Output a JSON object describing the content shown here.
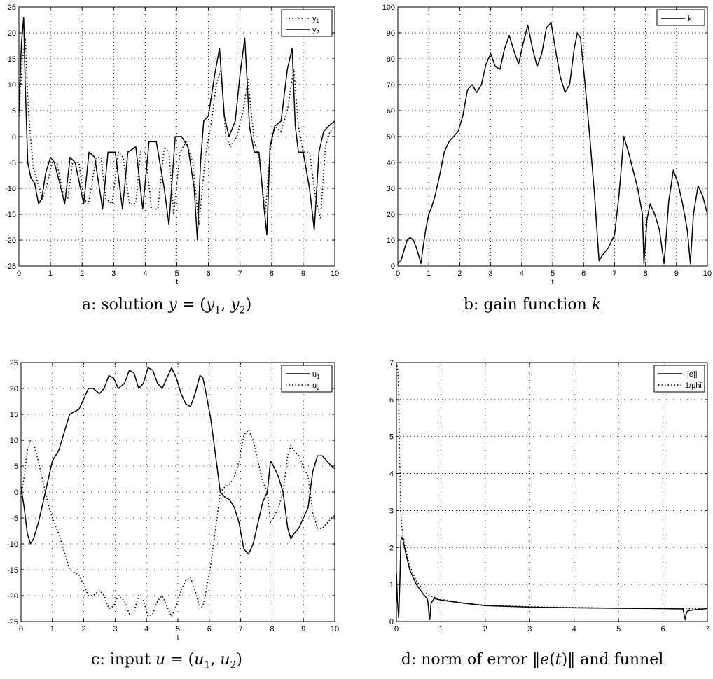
{
  "captions": {
    "a_prefix": "a: solution",
    "a_math": "y = (y1, y2)",
    "b_prefix": "b: gain function",
    "b_math": "k",
    "c_prefix": "c: input",
    "c_math": "u = (u1, u2)",
    "d_prefix": "d: norm of error",
    "d_math": "‖e(t)‖",
    "d_suffix": "and funnel"
  },
  "chart_data": [
    {
      "id": "a",
      "type": "line",
      "xlabel": "t",
      "xlim": [
        0,
        10
      ],
      "ylim": [
        -25,
        25
      ],
      "xticks": [
        0,
        1,
        2,
        3,
        4,
        5,
        6,
        7,
        8,
        9,
        10
      ],
      "yticks": [
        -25,
        -20,
        -15,
        -10,
        -5,
        0,
        5,
        10,
        15,
        20,
        25
      ],
      "grid": true,
      "legend": "top-right",
      "series": [
        {
          "name": "y1",
          "style": "dotted",
          "x": [
            0,
            0.1,
            0.2,
            0.3,
            0.45,
            0.6,
            0.75,
            0.9,
            1.05,
            1.2,
            1.4,
            1.55,
            1.7,
            1.9,
            2.05,
            2.2,
            2.45,
            2.6,
            2.75,
            2.95,
            3.15,
            3.3,
            3.5,
            3.7,
            3.85,
            4.0,
            4.2,
            4.4,
            4.6,
            4.75,
            4.9,
            5.1,
            5.3,
            5.5,
            5.7,
            5.9,
            6.1,
            6.25,
            6.4,
            6.55,
            6.7,
            6.9,
            7.1,
            7.25,
            7.45,
            7.6,
            7.8,
            7.95,
            8.1,
            8.3,
            8.5,
            8.7,
            8.85,
            9.0,
            9.2,
            9.4,
            9.55,
            9.7,
            9.85,
            10
          ],
          "y": [
            4,
            14,
            19,
            5,
            -6,
            -9,
            -12,
            -9,
            -5,
            -5,
            -11,
            -12,
            -5,
            -5,
            -12,
            -13,
            -4,
            -4,
            -12,
            -13,
            -3,
            -4,
            -13,
            -13,
            -3,
            -3,
            -14,
            -14,
            -2,
            -3,
            -15,
            -3,
            -1,
            -5,
            -17,
            -4,
            3,
            10,
            13,
            0,
            -2,
            0,
            5,
            11,
            -1,
            -4,
            -15,
            -3,
            2,
            1,
            5,
            13,
            2,
            -3,
            -3,
            -12,
            -16,
            -2,
            1,
            2
          ]
        },
        {
          "name": "y2",
          "style": "solid",
          "x": [
            0,
            0.08,
            0.15,
            0.2,
            0.28,
            0.38,
            0.5,
            0.62,
            0.72,
            0.85,
            1.0,
            1.12,
            1.25,
            1.45,
            1.62,
            1.78,
            2.05,
            2.22,
            2.4,
            2.65,
            2.82,
            3.05,
            3.28,
            3.45,
            3.7,
            3.92,
            4.12,
            4.35,
            4.6,
            4.75,
            4.95,
            5.15,
            5.35,
            5.55,
            5.65,
            5.75,
            5.85,
            6.0,
            6.2,
            6.35,
            6.5,
            6.65,
            6.85,
            7.0,
            7.15,
            7.3,
            7.45,
            7.6,
            7.75,
            7.85,
            7.95,
            8.1,
            8.3,
            8.5,
            8.65,
            8.75,
            8.85,
            9.0,
            9.2,
            9.35,
            9.5,
            9.65,
            9.8,
            10
          ],
          "y": [
            5,
            18,
            23,
            10,
            -5,
            -8,
            -9,
            -13,
            -12,
            -7,
            -4,
            -5,
            -8,
            -13,
            -4,
            -5,
            -13,
            -3,
            -4,
            -14,
            -3,
            -3,
            -14,
            -3,
            -2,
            -14,
            -1,
            -1,
            -10,
            -17,
            0,
            0,
            -2,
            -10,
            -20,
            -5,
            3,
            4,
            12,
            17,
            4,
            0,
            3,
            12,
            19,
            2,
            -3,
            -3,
            -13,
            -19,
            -2,
            2,
            3,
            13,
            17,
            2,
            -3,
            -3,
            -10,
            -18,
            -3,
            1,
            2,
            3
          ]
        }
      ]
    },
    {
      "id": "b",
      "type": "line",
      "xlabel": "t",
      "xlim": [
        0,
        10
      ],
      "ylim": [
        0,
        100
      ],
      "xticks": [
        0,
        1,
        2,
        3,
        4,
        5,
        6,
        7,
        8,
        9,
        10
      ],
      "yticks": [
        0,
        10,
        20,
        30,
        40,
        50,
        60,
        70,
        80,
        90,
        100
      ],
      "grid": true,
      "legend": "top-right",
      "series": [
        {
          "name": "k",
          "style": "solid",
          "x": [
            0,
            0.1,
            0.2,
            0.3,
            0.4,
            0.5,
            0.6,
            0.7,
            0.75,
            0.8,
            0.9,
            1.0,
            1.1,
            1.2,
            1.35,
            1.5,
            1.65,
            1.8,
            1.95,
            2.1,
            2.25,
            2.4,
            2.55,
            2.7,
            2.85,
            3.0,
            3.15,
            3.3,
            3.45,
            3.6,
            3.75,
            3.9,
            4.05,
            4.2,
            4.35,
            4.5,
            4.65,
            4.8,
            4.95,
            5.1,
            5.25,
            5.4,
            5.55,
            5.7,
            5.8,
            5.9,
            6.05,
            6.2,
            6.35,
            6.5,
            6.6,
            6.8,
            7.0,
            7.15,
            7.3,
            7.45,
            7.6,
            7.75,
            7.9,
            7.95,
            8.05,
            8.15,
            8.3,
            8.45,
            8.6,
            8.65,
            8.75,
            8.9,
            9.05,
            9.2,
            9.35,
            9.45,
            9.55,
            9.7,
            9.85,
            10
          ],
          "y": [
            1,
            2,
            6,
            10,
            11,
            10,
            7,
            3,
            1,
            6,
            14,
            20,
            23,
            27,
            35,
            44,
            48,
            50,
            52,
            58,
            68,
            70,
            67,
            70,
            78,
            82,
            77,
            76,
            84,
            89,
            83,
            78,
            86,
            93,
            84,
            77,
            82,
            92,
            94,
            83,
            73,
            67,
            70,
            84,
            90,
            88,
            70,
            50,
            28,
            2,
            4,
            7,
            12,
            28,
            50,
            44,
            37,
            30,
            20,
            1,
            18,
            24,
            20,
            14,
            1,
            8,
            25,
            37,
            32,
            24,
            14,
            1,
            20,
            31,
            27,
            20
          ]
        }
      ]
    },
    {
      "id": "c",
      "type": "line",
      "xlabel": "t",
      "xlim": [
        0,
        10
      ],
      "ylim": [
        -25,
        25
      ],
      "xticks": [
        0,
        1,
        2,
        3,
        4,
        5,
        6,
        7,
        8,
        9,
        10
      ],
      "yticks": [
        -25,
        -20,
        -15,
        -10,
        -5,
        0,
        5,
        10,
        15,
        20,
        25
      ],
      "grid": true,
      "legend": "top-right",
      "series": [
        {
          "name": "u1",
          "style": "solid",
          "x": [
            0,
            0.1,
            0.2,
            0.3,
            0.4,
            0.55,
            0.7,
            0.85,
            1.0,
            1.2,
            1.4,
            1.55,
            1.7,
            1.85,
            2.0,
            2.15,
            2.3,
            2.5,
            2.65,
            2.8,
            2.95,
            3.1,
            3.3,
            3.45,
            3.6,
            3.75,
            3.9,
            4.05,
            4.2,
            4.35,
            4.5,
            4.65,
            4.8,
            4.95,
            5.1,
            5.25,
            5.4,
            5.55,
            5.7,
            5.8,
            5.9,
            6.05,
            6.2,
            6.35,
            6.5,
            6.65,
            6.8,
            6.95,
            7.1,
            7.25,
            7.4,
            7.55,
            7.7,
            7.85,
            7.95,
            8.05,
            8.2,
            8.35,
            8.5,
            8.6,
            8.7,
            8.85,
            9.0,
            9.15,
            9.3,
            9.45,
            9.6,
            9.75,
            9.9,
            10
          ],
          "y": [
            1,
            -3,
            -8,
            -10,
            -9,
            -6,
            -2,
            2,
            6,
            8,
            12,
            15,
            15.5,
            16,
            18,
            20,
            20,
            19,
            20,
            22.5,
            22,
            20,
            21,
            23.5,
            23,
            20,
            21,
            24,
            23.5,
            21,
            20,
            22,
            24,
            22,
            19,
            17,
            16.5,
            19,
            22.5,
            22,
            19,
            14,
            7,
            0,
            -1,
            -1.5,
            -3,
            -6,
            -11,
            -12,
            -10,
            -6,
            -2,
            0,
            6,
            5,
            3,
            0,
            -7,
            -9,
            -8,
            -7,
            -5,
            -3,
            4,
            7,
            7,
            6,
            5,
            4.5
          ]
        },
        {
          "name": "u2",
          "style": "dotted",
          "x": [
            0,
            0.1,
            0.2,
            0.3,
            0.4,
            0.55,
            0.7,
            0.85,
            1.0,
            1.2,
            1.4,
            1.55,
            1.7,
            1.85,
            2.0,
            2.15,
            2.3,
            2.5,
            2.65,
            2.8,
            2.95,
            3.1,
            3.3,
            3.45,
            3.6,
            3.75,
            3.9,
            4.05,
            4.2,
            4.35,
            4.5,
            4.65,
            4.8,
            4.95,
            5.1,
            5.25,
            5.4,
            5.55,
            5.7,
            5.8,
            5.9,
            6.05,
            6.2,
            6.35,
            6.5,
            6.65,
            6.8,
            6.95,
            7.1,
            7.25,
            7.4,
            7.55,
            7.7,
            7.85,
            7.95,
            8.05,
            8.2,
            8.35,
            8.5,
            8.6,
            8.7,
            8.85,
            9.0,
            9.15,
            9.3,
            9.45,
            9.6,
            9.75,
            9.9,
            10
          ],
          "y": [
            -1,
            3,
            8,
            10,
            9.5,
            6,
            2,
            -2,
            -5,
            -8,
            -12,
            -15,
            -15.5,
            -16,
            -18,
            -20,
            -20,
            -19,
            -20,
            -22.5,
            -22,
            -20,
            -21,
            -23.5,
            -23,
            -20,
            -21,
            -24,
            -23.5,
            -21,
            -20,
            -22,
            -24,
            -22,
            -19,
            -17,
            -16.5,
            -19,
            -22.5,
            -22,
            -19,
            -14,
            -7,
            0,
            1,
            1.5,
            3,
            6,
            11,
            12,
            10,
            6,
            2,
            0,
            -6,
            -5,
            -3,
            0,
            7,
            9,
            8,
            7,
            5,
            3,
            -4,
            -7,
            -7,
            -6,
            -5,
            -4.5
          ]
        }
      ]
    },
    {
      "id": "d",
      "type": "line",
      "xlim": [
        0,
        7
      ],
      "ylim": [
        0,
        7
      ],
      "xticks": [
        0,
        1,
        2,
        3,
        4,
        5,
        6,
        7
      ],
      "yticks": [
        0,
        1,
        2,
        3,
        4,
        5,
        6,
        7
      ],
      "grid": true,
      "legend": "top-right",
      "series": [
        {
          "name": "||e||",
          "style": "solid",
          "x": [
            0,
            0.02,
            0.05,
            0.08,
            0.1,
            0.12,
            0.15,
            0.2,
            0.3,
            0.45,
            0.6,
            0.7,
            0.72,
            0.74,
            0.75,
            0.78,
            0.85,
            1.0,
            1.5,
            2.0,
            3.0,
            4.0,
            5.0,
            6.0,
            6.45,
            6.5,
            6.52,
            6.55,
            6.6,
            6.8,
            7.0
          ],
          "y": [
            1.3,
            0.6,
            0.1,
            1.2,
            2.2,
            2.28,
            2.2,
            1.9,
            1.4,
            1.0,
            0.75,
            0.6,
            0.4,
            0.1,
            0.05,
            0.5,
            0.62,
            0.58,
            0.5,
            0.43,
            0.39,
            0.37,
            0.36,
            0.35,
            0.34,
            0.05,
            0.2,
            0.28,
            0.3,
            0.33,
            0.35
          ]
        },
        {
          "name": "1/phi",
          "style": "dotted",
          "x": [
            0,
            0.03,
            0.05,
            0.07,
            0.1,
            0.12,
            0.15,
            0.2,
            0.3,
            0.45,
            0.6,
            0.75,
            1.0,
            1.5,
            2.0,
            3.0,
            4.0,
            5.0,
            6.0,
            7.0
          ],
          "y": [
            7,
            6.8,
            6.2,
            4.5,
            3.0,
            2.6,
            2.3,
            2.0,
            1.5,
            1.1,
            0.85,
            0.7,
            0.6,
            0.5,
            0.44,
            0.4,
            0.38,
            0.36,
            0.35,
            0.35
          ]
        }
      ]
    }
  ]
}
